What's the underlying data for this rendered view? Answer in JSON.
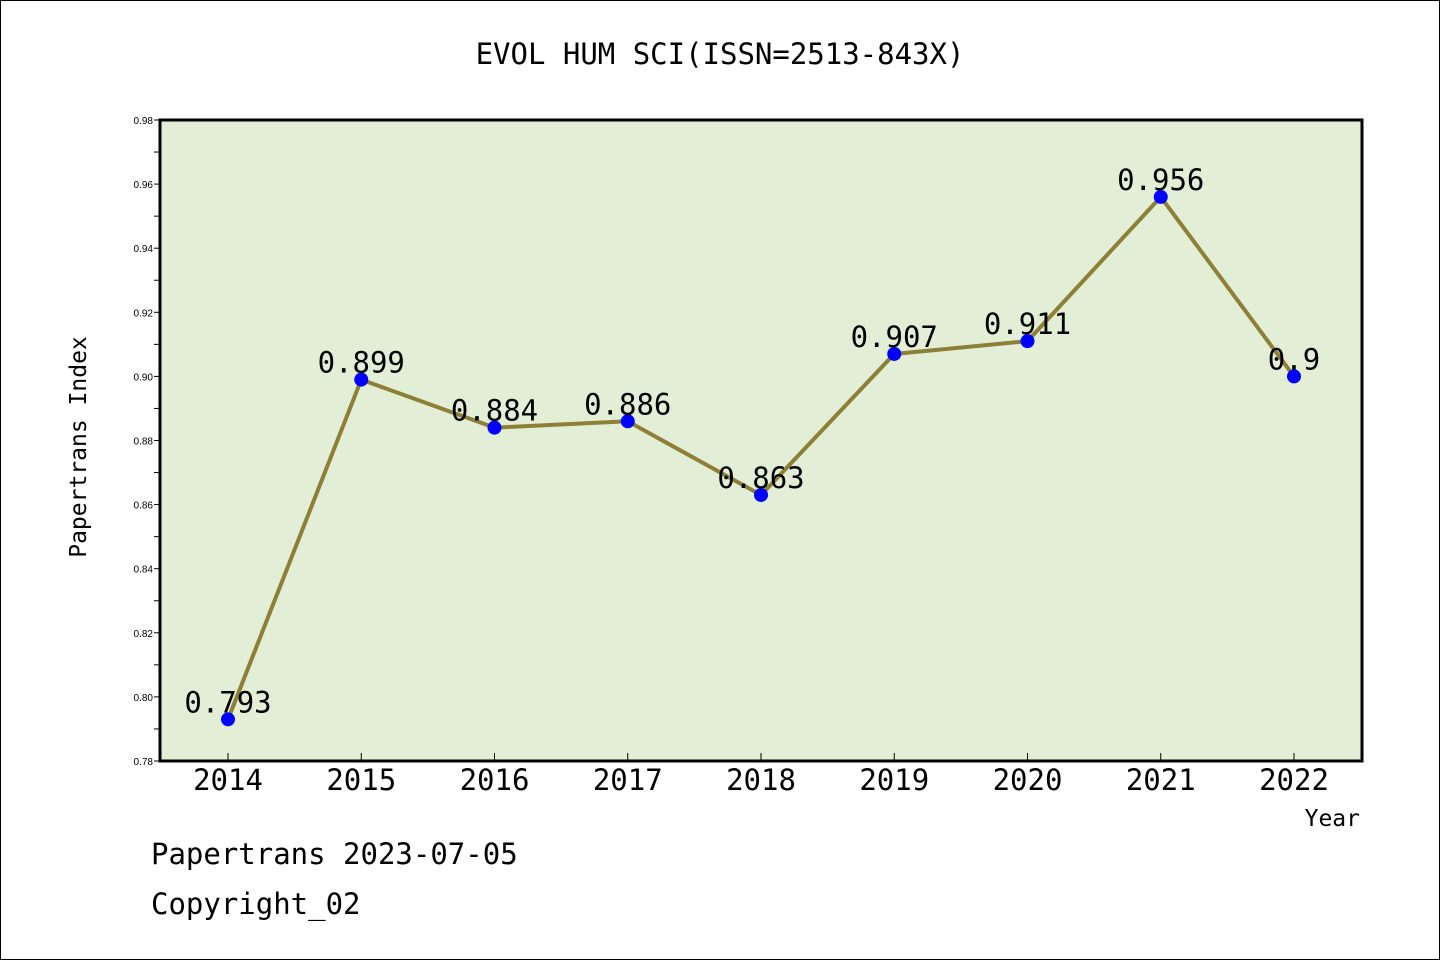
{
  "footer": {
    "line1": "Papertrans 2023-07-05",
    "line2": "Copyright_02"
  },
  "colors": {
    "plot_bg": "#e2efd6",
    "line": "#8e7f36",
    "marker": "#0000ff",
    "axis": "#000000"
  },
  "chart_data": {
    "type": "line",
    "title": "EVOL HUM SCI(ISSN=2513-843X)",
    "xlabel": "Year",
    "ylabel": "Papertrans Index",
    "categories": [
      "2014",
      "2015",
      "2016",
      "2017",
      "2018",
      "2019",
      "2020",
      "2021",
      "2022"
    ],
    "series": [
      {
        "values": [
          0.793,
          0.899,
          0.884,
          0.886,
          0.863,
          0.907,
          0.911,
          0.956,
          0.9
        ],
        "labels": [
          "0.793",
          "0.899",
          "0.884",
          "0.886",
          "0.863",
          "0.907",
          "0.911",
          "0.956",
          "0.9"
        ]
      }
    ],
    "ylim": [
      0.78,
      0.98
    ],
    "yticks": [
      "0.78",
      "0.80",
      "0.82",
      "0.84",
      "0.86",
      "0.88",
      "0.90",
      "0.92",
      "0.94",
      "0.96",
      "0.98"
    ],
    "grid": false,
    "legend": "none"
  }
}
